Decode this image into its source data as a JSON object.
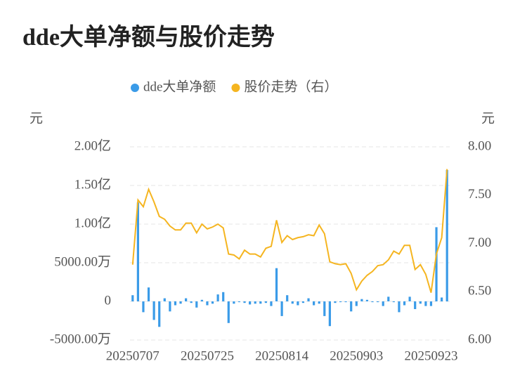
{
  "chart_data": {
    "type": "bar-line",
    "title": "dde大单净额与股价走势",
    "y_label": "元",
    "y2_label": "元",
    "categories": [
      "20250707",
      null,
      null,
      null,
      null,
      null,
      null,
      null,
      null,
      null,
      null,
      null,
      null,
      null,
      "20250725",
      null,
      null,
      null,
      null,
      null,
      null,
      null,
      null,
      null,
      null,
      null,
      null,
      null,
      "20250814",
      null,
      null,
      null,
      null,
      null,
      null,
      null,
      null,
      null,
      null,
      null,
      null,
      null,
      "20250903",
      null,
      null,
      null,
      null,
      null,
      null,
      null,
      null,
      null,
      null,
      null,
      null,
      null,
      "20250923",
      null,
      null,
      null
    ],
    "series": [
      {
        "name": "dde大单净额",
        "type": "bar",
        "axis": "y",
        "color": "#3a9be8",
        "values": [
          800,
          12800,
          -1400,
          1800,
          -2400,
          -3300,
          400,
          -1300,
          -500,
          -300,
          400,
          -200,
          -800,
          200,
          -500,
          -300,
          900,
          1200,
          -2800,
          -300,
          -100,
          -200,
          -400,
          -300,
          -300,
          -200,
          -600,
          4300,
          -1900,
          800,
          -300,
          -500,
          -200,
          400,
          -500,
          -300,
          -1900,
          -3200,
          -200,
          -100,
          -100,
          -1300,
          -600,
          300,
          200,
          -100,
          -100,
          -600,
          600,
          -100,
          -1400,
          -500,
          600,
          -1000,
          -300,
          -600,
          -600,
          9600,
          500,
          17000
        ]
      },
      {
        "name": "股价走势（右）",
        "type": "line",
        "axis": "y2",
        "color": "#f5b520",
        "values": [
          6.78,
          7.45,
          7.38,
          7.56,
          7.43,
          7.28,
          7.25,
          7.18,
          7.14,
          7.14,
          7.21,
          7.21,
          7.11,
          7.2,
          7.15,
          7.17,
          7.2,
          7.16,
          6.89,
          6.88,
          6.84,
          6.93,
          6.89,
          6.89,
          6.86,
          6.95,
          6.97,
          7.24,
          7.01,
          7.08,
          7.04,
          7.06,
          7.07,
          7.09,
          7.08,
          7.19,
          7.1,
          6.81,
          6.79,
          6.78,
          6.79,
          6.69,
          6.52,
          6.61,
          6.67,
          6.71,
          6.77,
          6.78,
          6.83,
          6.92,
          6.89,
          6.98,
          6.98,
          6.73,
          6.78,
          6.68,
          6.49,
          6.89,
          7.06,
          7.77
        ]
      }
    ],
    "ylim": [
      -5000,
      20000
    ],
    "yticks": [
      {
        "value": -5000,
        "label": "-5000.00万"
      },
      0,
      {
        "value": 5000,
        "label": "5000.00万"
      },
      {
        "value": 10000,
        "label": "1.00亿"
      },
      {
        "value": 15000,
        "label": "1.50亿"
      },
      {
        "value": 20000,
        "label": "2.00亿"
      }
    ],
    "y2lim": [
      6,
      8
    ],
    "y2ticks": [
      {
        "value": 6,
        "label": "6.00"
      },
      {
        "value": 6.5,
        "label": "6.50"
      },
      {
        "value": 7,
        "label": "7.00"
      },
      {
        "value": 7.5,
        "label": "7.50"
      },
      {
        "value": 8,
        "label": "8.00"
      }
    ],
    "grid": true
  }
}
